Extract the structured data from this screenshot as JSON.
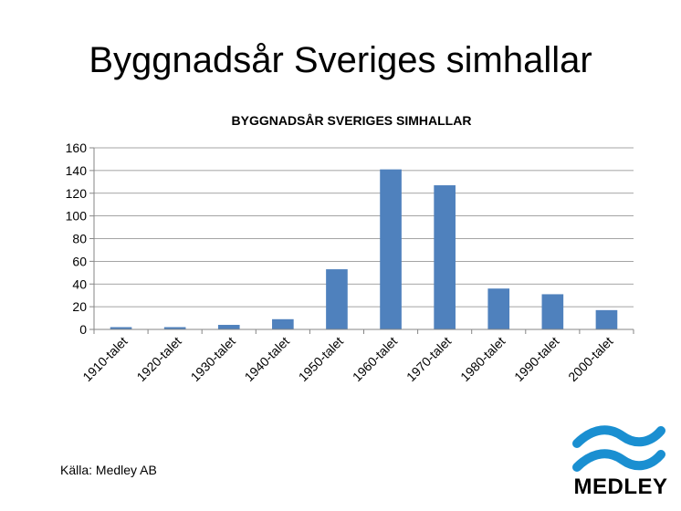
{
  "slide_title": "Byggnadsår Sveriges simhallar",
  "source_note": "Källa: Medley AB",
  "logo_text": "MEDLEY",
  "logo_color": "#1a8fd1",
  "chart_data": {
    "type": "bar",
    "title": "BYGGNADSÅR SVERIGES SIMHALLAR",
    "xlabel": "",
    "ylabel": "",
    "categories": [
      "1910-talet",
      "1920-talet",
      "1930-talet",
      "1940-talet",
      "1950-talet",
      "1960-talet",
      "1970-talet",
      "1980-talet",
      "1990-talet",
      "2000-talet"
    ],
    "values": [
      2,
      2,
      4,
      9,
      53,
      141,
      127,
      36,
      31,
      17
    ],
    "ylim": [
      0,
      160
    ],
    "yticks": [
      0,
      20,
      40,
      60,
      80,
      100,
      120,
      140,
      160
    ],
    "grid": true,
    "legend": "none",
    "bar_color": "#4f81bd"
  }
}
